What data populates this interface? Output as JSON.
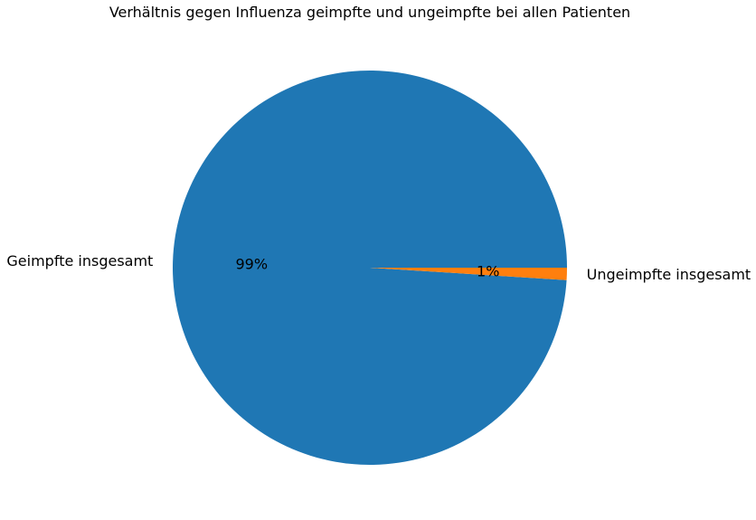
{
  "chart_data": {
    "type": "pie",
    "title": "Verhältnis gegen Influenza geimpfte und ungeimpfte bei allen Patienten",
    "slices": [
      {
        "label": "Geimpfte insgesamt",
        "value": 99,
        "pct_label": "99%",
        "color": "#1f77b4"
      },
      {
        "label": "Ungeimpfte insgesamt",
        "value": 1,
        "pct_label": "1%",
        "color": "#ff7f0e"
      }
    ],
    "legend": "none"
  }
}
